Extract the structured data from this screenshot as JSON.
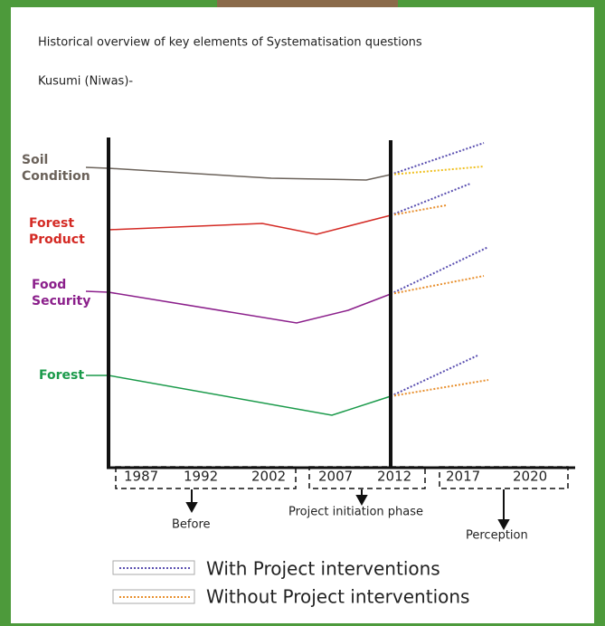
{
  "title": "Historical overview of key elements of Systematisation questions",
  "subtitle": "Kusumi (Niwas)-",
  "elements": [
    "Soil Condition",
    "Forest Product",
    "Food Security",
    "Forest"
  ],
  "years": [
    "1987",
    "1992",
    "2002",
    "2007",
    "2012",
    "2017",
    "2020"
  ],
  "phases": [
    "Before",
    "Project initiation phase",
    "Perception"
  ],
  "legend": [
    "With Project interventions",
    "Without Project interventions"
  ]
}
